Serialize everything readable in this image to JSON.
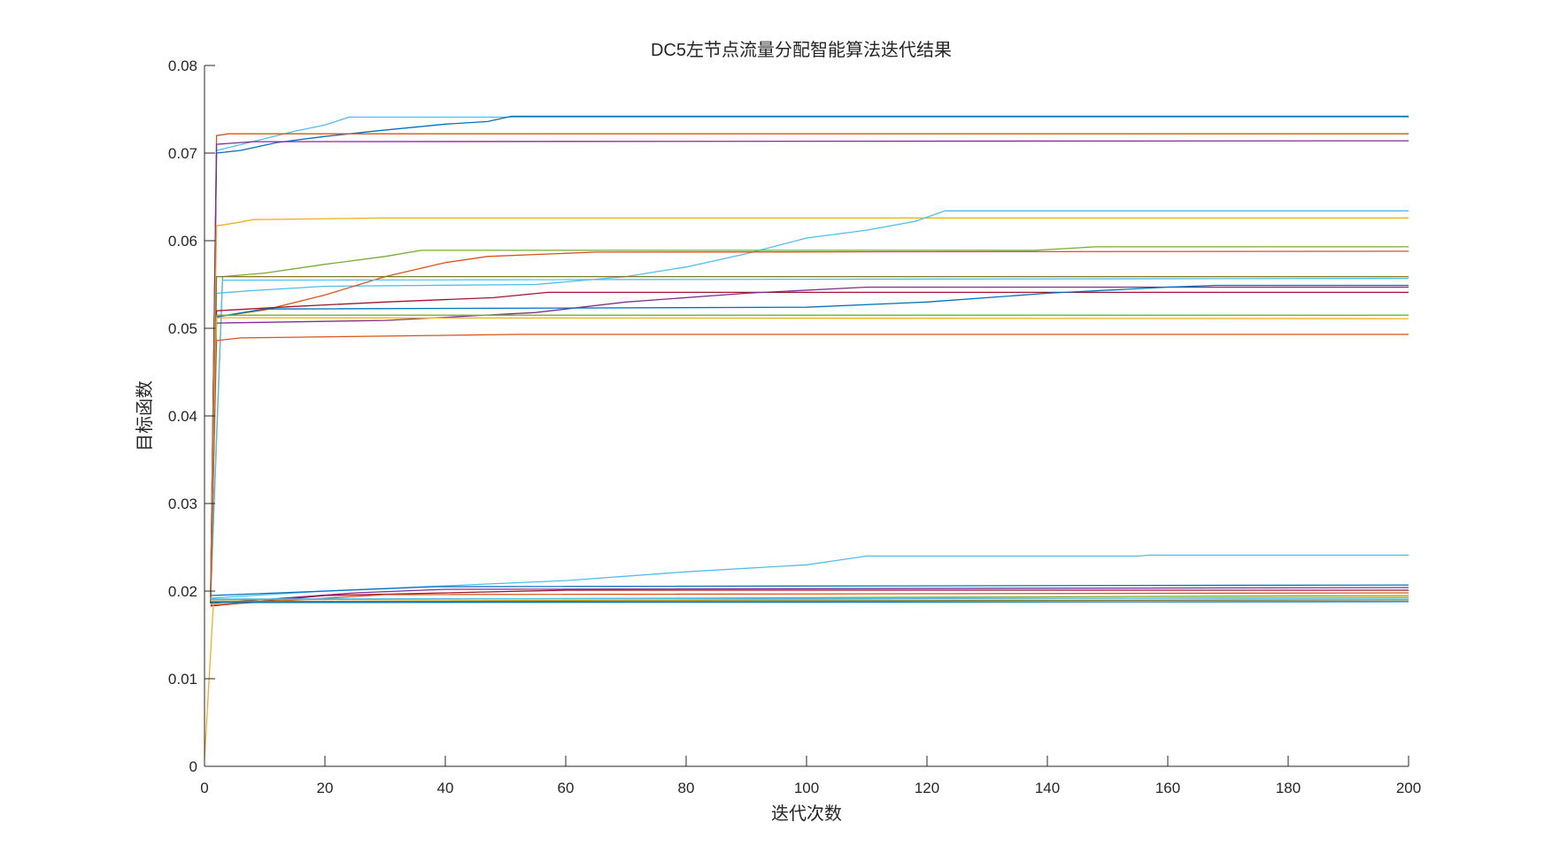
{
  "chart_data": {
    "type": "line",
    "title": "DC5左节点流量分配智能算法迭代结果",
    "xlabel": "迭代次数",
    "ylabel": "目标函数",
    "xlim": [
      0,
      200
    ],
    "ylim": [
      0,
      0.08
    ],
    "xticks": [
      "0",
      "20",
      "40",
      "60",
      "80",
      "100",
      "120",
      "140",
      "160",
      "180",
      "200"
    ],
    "yticks": [
      "0",
      "0.01",
      "0.02",
      "0.03",
      "0.04",
      "0.05",
      "0.06",
      "0.07",
      "0.08"
    ],
    "grid": false,
    "legend": "none",
    "series": [
      {
        "color": "#4dbeee",
        "points": [
          [
            1,
            0.0195
          ],
          [
            2,
            0.0703
          ],
          [
            5,
            0.0708
          ],
          [
            15,
            0.0725
          ],
          [
            20,
            0.0732
          ],
          [
            24,
            0.0741
          ],
          [
            200,
            0.0741
          ]
        ]
      },
      {
        "color": "#0072bd",
        "points": [
          [
            1,
            0.0193
          ],
          [
            2,
            0.07
          ],
          [
            6,
            0.0703
          ],
          [
            12,
            0.0712
          ],
          [
            20,
            0.0719
          ],
          [
            28,
            0.0725
          ],
          [
            40,
            0.0733
          ],
          [
            47,
            0.0736
          ],
          [
            51,
            0.0742
          ],
          [
            200,
            0.0742
          ]
        ]
      },
      {
        "color": "#d95319",
        "points": [
          [
            1,
            0.019
          ],
          [
            2,
            0.072
          ],
          [
            4,
            0.0722
          ],
          [
            200,
            0.0722
          ]
        ]
      },
      {
        "color": "#7e2f8e",
        "points": [
          [
            1,
            0.0186
          ],
          [
            2,
            0.071
          ],
          [
            8,
            0.0713
          ],
          [
            200,
            0.0714
          ]
        ]
      },
      {
        "color": "#edb120",
        "points": [
          [
            1,
            0.0188
          ],
          [
            2,
            0.0617
          ],
          [
            5,
            0.062
          ],
          [
            8,
            0.0624
          ],
          [
            30,
            0.0626
          ],
          [
            200,
            0.0626
          ]
        ]
      },
      {
        "color": "#4dbeee",
        "points": [
          [
            1,
            0.0192
          ],
          [
            2,
            0.054
          ],
          [
            8,
            0.0543
          ],
          [
            20,
            0.0548
          ],
          [
            55,
            0.055
          ],
          [
            70,
            0.0559
          ],
          [
            80,
            0.057
          ],
          [
            90,
            0.0585
          ],
          [
            100,
            0.0603
          ],
          [
            110,
            0.0612
          ],
          [
            118,
            0.0622
          ],
          [
            123,
            0.0634
          ],
          [
            200,
            0.0634
          ]
        ]
      },
      {
        "color": "#77ac30",
        "points": [
          [
            1,
            0.019
          ],
          [
            3,
            0.0559
          ],
          [
            10,
            0.0563
          ],
          [
            20,
            0.0573
          ],
          [
            30,
            0.0582
          ],
          [
            36,
            0.0589
          ],
          [
            138,
            0.0589
          ],
          [
            148,
            0.0593
          ],
          [
            200,
            0.0593
          ]
        ]
      },
      {
        "color": "#d95319",
        "points": [
          [
            1,
            0.0189
          ],
          [
            2,
            0.0513
          ],
          [
            10,
            0.0521
          ],
          [
            20,
            0.0538
          ],
          [
            30,
            0.0559
          ],
          [
            40,
            0.0575
          ],
          [
            47,
            0.0582
          ],
          [
            65,
            0.0587
          ],
          [
            200,
            0.0588
          ]
        ]
      },
      {
        "color": "#7e7a2a",
        "points": [
          [
            1,
            0.0188
          ],
          [
            2,
            0.0559
          ],
          [
            200,
            0.0559
          ]
        ]
      },
      {
        "color": "#4dbeee",
        "points": [
          [
            1,
            0.019
          ],
          [
            3,
            0.0555
          ],
          [
            200,
            0.0557
          ]
        ]
      },
      {
        "color": "#a2142f",
        "points": [
          [
            1,
            0.0187
          ],
          [
            2,
            0.052
          ],
          [
            15,
            0.0525
          ],
          [
            30,
            0.053
          ],
          [
            48,
            0.0535
          ],
          [
            57,
            0.0541
          ],
          [
            200,
            0.0541
          ]
        ]
      },
      {
        "color": "#7e2f8e",
        "points": [
          [
            1,
            0.0186
          ],
          [
            2,
            0.0506
          ],
          [
            30,
            0.0509
          ],
          [
            55,
            0.0518
          ],
          [
            70,
            0.053
          ],
          [
            90,
            0.054
          ],
          [
            110,
            0.0547
          ],
          [
            200,
            0.0547
          ]
        ]
      },
      {
        "color": "#0072bd",
        "points": [
          [
            1,
            0.0191
          ],
          [
            2,
            0.0513
          ],
          [
            10,
            0.0522
          ],
          [
            100,
            0.0524
          ],
          [
            120,
            0.053
          ],
          [
            140,
            0.054
          ],
          [
            160,
            0.0547
          ],
          [
            168,
            0.0549
          ],
          [
            200,
            0.0549
          ]
        ]
      },
      {
        "color": "#77ac30",
        "points": [
          [
            1,
            0.019
          ],
          [
            2,
            0.0515
          ],
          [
            200,
            0.0515
          ]
        ]
      },
      {
        "color": "#edb120",
        "points": [
          [
            1,
            0.0189
          ],
          [
            2,
            0.0512
          ],
          [
            200,
            0.0511
          ]
        ]
      },
      {
        "color": "#d95319",
        "points": [
          [
            1,
            0.0188
          ],
          [
            2,
            0.0486
          ],
          [
            6,
            0.0489
          ],
          [
            52,
            0.0493
          ],
          [
            200,
            0.0493
          ]
        ]
      },
      {
        "color": "#4dbeee",
        "points": [
          [
            1,
            0.0192
          ],
          [
            20,
            0.02
          ],
          [
            40,
            0.0206
          ],
          [
            60,
            0.0212
          ],
          [
            80,
            0.0222
          ],
          [
            100,
            0.023
          ],
          [
            105,
            0.0235
          ],
          [
            110,
            0.024
          ],
          [
            155,
            0.024
          ],
          [
            157,
            0.0241
          ],
          [
            200,
            0.0241
          ]
        ]
      },
      {
        "color": "#0072bd",
        "points": [
          [
            1,
            0.0195
          ],
          [
            20,
            0.02
          ],
          [
            38,
            0.0205
          ],
          [
            200,
            0.0207
          ]
        ]
      },
      {
        "color": "#7e2f8e",
        "points": [
          [
            1,
            0.0186
          ],
          [
            25,
            0.0198
          ],
          [
            40,
            0.0202
          ],
          [
            200,
            0.0204
          ]
        ]
      },
      {
        "color": "#a2142f",
        "points": [
          [
            1,
            0.0183
          ],
          [
            20,
            0.0195
          ],
          [
            60,
            0.0201
          ],
          [
            200,
            0.0201
          ]
        ]
      },
      {
        "color": "#d95319",
        "points": [
          [
            1,
            0.0184
          ],
          [
            30,
            0.0196
          ],
          [
            200,
            0.0198
          ]
        ]
      },
      {
        "color": "#77ac30",
        "points": [
          [
            1,
            0.019
          ],
          [
            200,
            0.0195
          ]
        ]
      },
      {
        "color": "#edb120",
        "points": [
          [
            0,
            0.0008
          ],
          [
            1.5,
            0.0188
          ],
          [
            200,
            0.0193
          ]
        ]
      },
      {
        "color": "#7e7a2a",
        "points": [
          [
            1,
            0.0188
          ],
          [
            200,
            0.019
          ]
        ]
      },
      {
        "color": "#4dbeee",
        "points": [
          [
            1,
            0.0191
          ],
          [
            200,
            0.0192
          ]
        ]
      },
      {
        "color": "#0072bd",
        "points": [
          [
            1,
            0.0187
          ],
          [
            200,
            0.0188
          ]
        ]
      }
    ]
  }
}
